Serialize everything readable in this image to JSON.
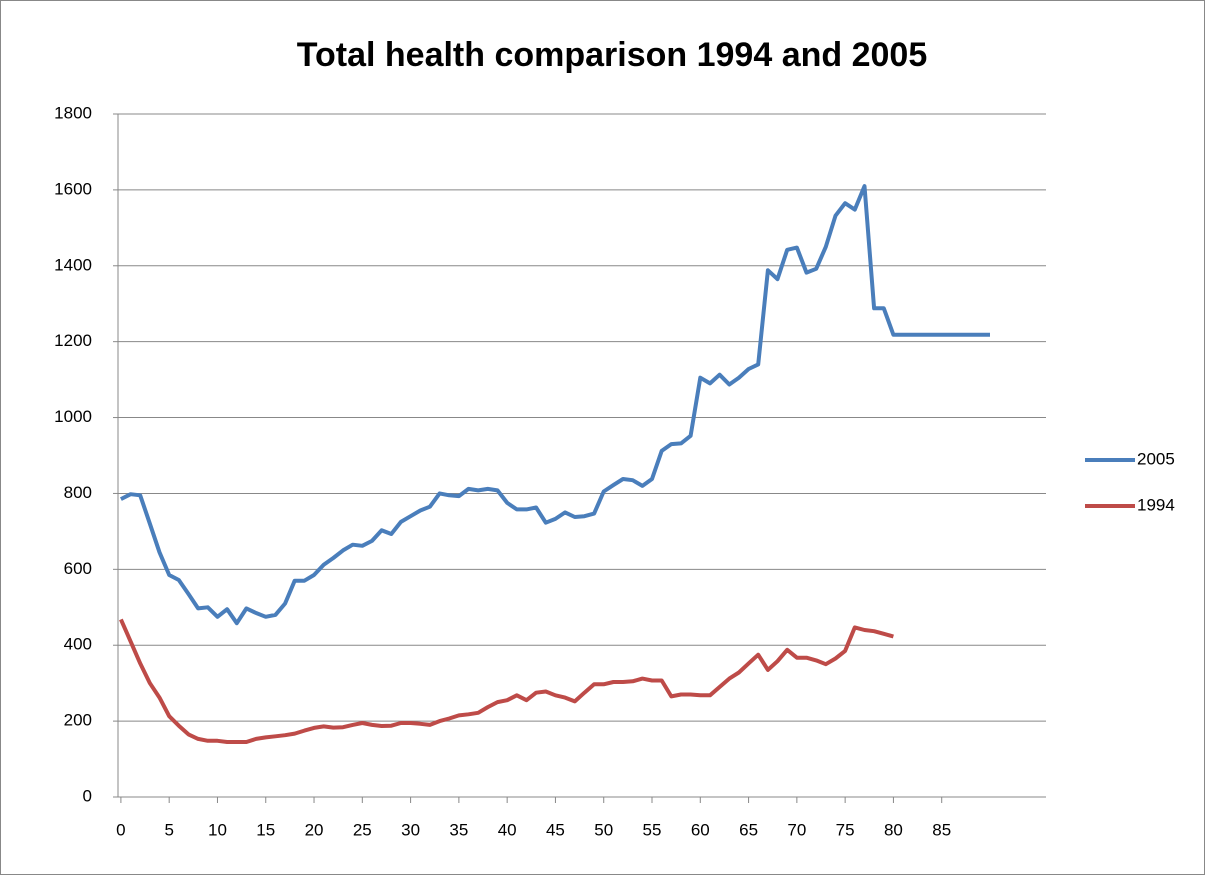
{
  "chart_data": {
    "type": "line",
    "title": "Total health comparison 1994 and 2005",
    "x": [
      0,
      1,
      2,
      3,
      4,
      5,
      6,
      7,
      8,
      9,
      10,
      11,
      12,
      13,
      14,
      15,
      16,
      17,
      18,
      19,
      20,
      21,
      22,
      23,
      24,
      25,
      26,
      27,
      28,
      29,
      30,
      31,
      32,
      33,
      34,
      35,
      36,
      37,
      38,
      39,
      40,
      41,
      42,
      43,
      44,
      45,
      46,
      47,
      48,
      49,
      50,
      51,
      52,
      53,
      54,
      55,
      56,
      57,
      58,
      59,
      60,
      61,
      62,
      63,
      64,
      65,
      66,
      67,
      68,
      69,
      70,
      71,
      72,
      73,
      74,
      75,
      76,
      77,
      78,
      79,
      80,
      81,
      82,
      83,
      84,
      85,
      86,
      87,
      88,
      89,
      90
    ],
    "series": [
      {
        "name": "2005",
        "color": "#4a7ebb",
        "values": [
          785,
          798,
          795,
          720,
          645,
          585,
          572,
          535,
          497,
          500,
          475,
          495,
          458,
          497,
          485,
          475,
          480,
          510,
          570,
          570,
          585,
          612,
          630,
          650,
          665,
          662,
          675,
          703,
          693,
          725,
          740,
          755,
          765,
          800,
          795,
          793,
          812,
          808,
          812,
          808,
          775,
          758,
          758,
          763,
          723,
          733,
          750,
          738,
          740,
          747,
          805,
          822,
          838,
          835,
          820,
          838,
          912,
          930,
          932,
          952,
          1105,
          1090,
          1113,
          1087,
          1105,
          1128,
          1140,
          1388,
          1365,
          1442,
          1448,
          1382,
          1392,
          1450,
          1532,
          1565,
          1548,
          1610,
          1288,
          1288,
          1218,
          1218,
          1218,
          1218,
          1218,
          1218,
          1218,
          1218,
          1218,
          1218,
          1218
        ]
      },
      {
        "name": "1994",
        "color": "#be4b48",
        "values": [
          468,
          410,
          352,
          300,
          262,
          213,
          188,
          165,
          153,
          148,
          148,
          145,
          145,
          145,
          153,
          157,
          160,
          163,
          167,
          175,
          182,
          186,
          183,
          184,
          190,
          195,
          190,
          187,
          188,
          195,
          195,
          193,
          190,
          200,
          207,
          215,
          218,
          222,
          237,
          250,
          255,
          268,
          255,
          275,
          278,
          268,
          262,
          252,
          275,
          297,
          297,
          303,
          303,
          305,
          312,
          307,
          307,
          265,
          270,
          270,
          268,
          268,
          290,
          312,
          328,
          352,
          375,
          335,
          358,
          388,
          367,
          367,
          360,
          350,
          365,
          385,
          447,
          440,
          437,
          430,
          423,
          null,
          null,
          null,
          null,
          null,
          null,
          null,
          null,
          null,
          null
        ]
      }
    ],
    "xlim": [
      -0.3,
      95.8
    ],
    "xticks": [
      0,
      5,
      10,
      15,
      20,
      25,
      30,
      35,
      40,
      45,
      50,
      55,
      60,
      65,
      70,
      75,
      80,
      85
    ],
    "ylim": [
      0,
      1800
    ],
    "yticks": [
      0,
      200,
      400,
      600,
      800,
      1000,
      1200,
      1400,
      1600,
      1800
    ],
    "grid": true,
    "legend": "right"
  }
}
